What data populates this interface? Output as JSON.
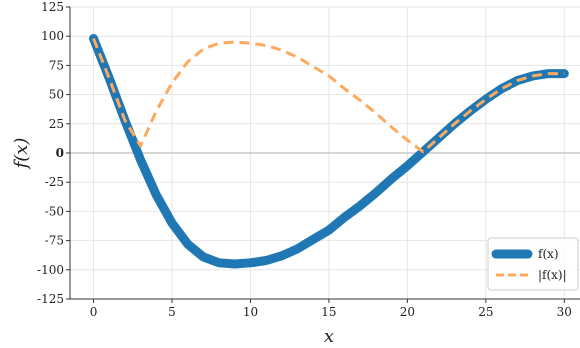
{
  "chart_data": {
    "type": "line",
    "title": "",
    "xlabel": "x",
    "ylabel": "f(x)",
    "xlim": [
      -1.5,
      31
    ],
    "ylim": [
      -125,
      125
    ],
    "x_ticks": [
      0,
      5,
      10,
      15,
      20,
      25,
      30
    ],
    "x_tick_labels": [
      "0",
      "5",
      "10",
      "15",
      "20",
      "25",
      "30"
    ],
    "y_ticks": [
      125,
      100,
      75,
      50,
      25,
      0,
      -25,
      -50,
      -75,
      -100,
      -125
    ],
    "y_tick_labels": [
      "125",
      "100",
      "75",
      "50",
      "25",
      "0",
      "-25",
      "-50",
      "-75",
      "-100",
      "-125"
    ],
    "bold_tick_y": 0,
    "grid": true,
    "zero_line": true,
    "legend_position": "bottom-right",
    "x": [
      0,
      1,
      2,
      3,
      4,
      5,
      6,
      7,
      8,
      9,
      10,
      11,
      12,
      13,
      14,
      15,
      16,
      17,
      18,
      19,
      20,
      21,
      22,
      23,
      24,
      25,
      26,
      27,
      28,
      29,
      30
    ],
    "series": [
      {
        "name": "f(x)",
        "color": "#1f77b4",
        "style": "solid",
        "values": [
          98,
          64,
          28,
          -6,
          -36,
          -60,
          -78,
          -89,
          -94,
          -95,
          -94,
          -92,
          -88,
          -82,
          -74,
          -66,
          -55,
          -45,
          -34,
          -22,
          -11,
          1,
          13,
          25,
          36,
          46,
          55,
          62,
          66,
          68,
          68
        ]
      },
      {
        "name": "|f(x)|",
        "color": "#ffa95c",
        "style": "dashed",
        "values": [
          98,
          64,
          28,
          6,
          36,
          60,
          78,
          89,
          94,
          95,
          94,
          92,
          88,
          82,
          74,
          66,
          55,
          45,
          34,
          22,
          11,
          1,
          13,
          25,
          36,
          46,
          55,
          62,
          66,
          68,
          68
        ]
      }
    ]
  }
}
